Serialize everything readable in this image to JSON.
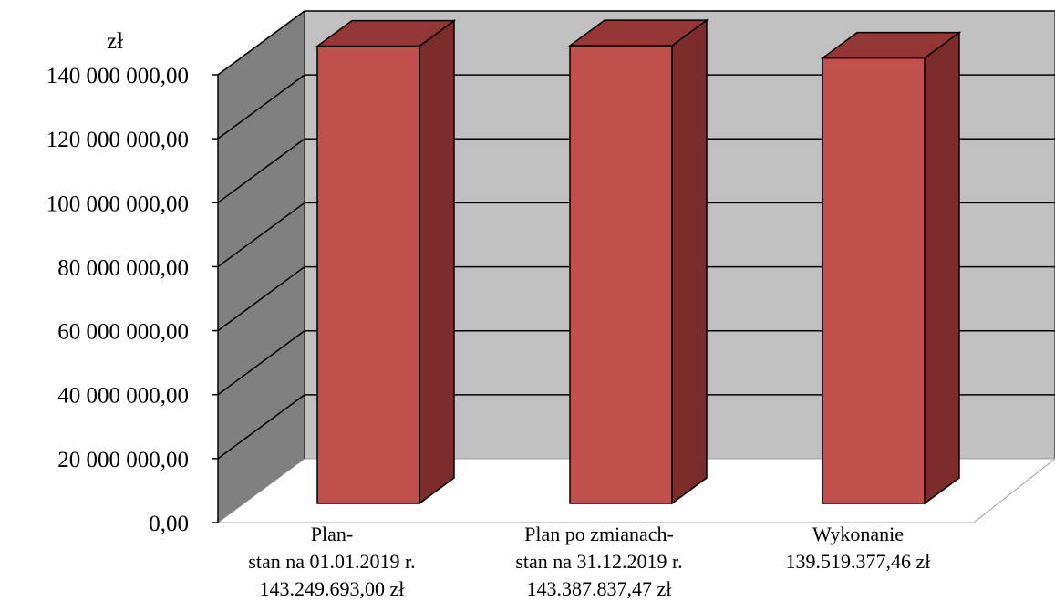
{
  "chart_data": {
    "type": "bar",
    "style": "3d-column",
    "y_unit_label": "zł",
    "ylim": [
      0,
      140000000
    ],
    "y_ticks": [
      {
        "value": 0,
        "label": "0,00"
      },
      {
        "value": 20000000,
        "label": "20 000 000,00"
      },
      {
        "value": 40000000,
        "label": "40 000 000,00"
      },
      {
        "value": 60000000,
        "label": "60 000 000,00"
      },
      {
        "value": 80000000,
        "label": "80 000 000,00"
      },
      {
        "value": 100000000,
        "label": "100 000 000,00"
      },
      {
        "value": 120000000,
        "label": "120 000 000,00"
      },
      {
        "value": 140000000,
        "label": "140 000 000,00"
      }
    ],
    "categories": [
      {
        "lines": [
          "Plan-",
          "stan na 01.01.2019 r.",
          "143.249.693,00 zł"
        ]
      },
      {
        "lines": [
          "Plan po zmianach-",
          "stan na 31.12.2019 r.",
          "143.387.837,47 zł"
        ]
      },
      {
        "lines": [
          "Wykonanie",
          "139.519.377,46 zł"
        ]
      }
    ],
    "values": [
      143249693.0,
      143387837.47,
      139519377.46
    ],
    "grid": true,
    "legend": "none",
    "colors": {
      "bar_front": "#C0504D",
      "bar_top": "#943634",
      "bar_side": "#7B2C2B",
      "back_wall": "#C0C0C0",
      "side_wall": "#808080",
      "gridline": "#000000"
    }
  }
}
